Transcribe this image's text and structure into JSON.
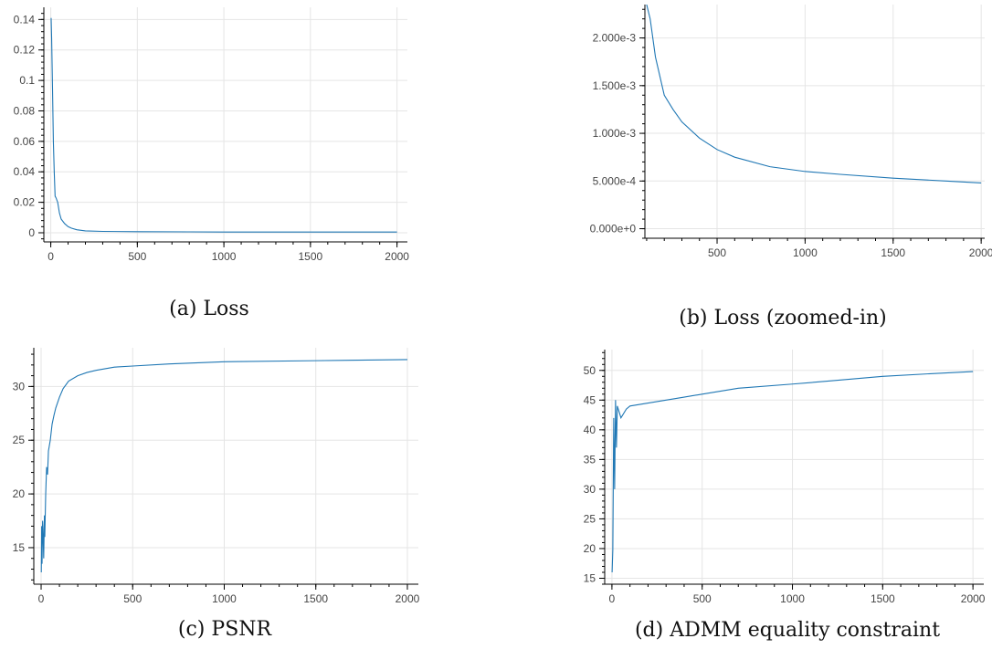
{
  "colors": {
    "line": "#1f77b4",
    "grid": "#e5e5e5",
    "axis": "#000000"
  },
  "chart_data": [
    {
      "id": "a",
      "type": "line",
      "caption": "(a) Loss",
      "xlim": [
        -40,
        2060
      ],
      "ylim": [
        -0.006,
        0.148
      ],
      "xticks": [
        0,
        500,
        1000,
        1500,
        2000
      ],
      "xtick_labels": [
        "0",
        "500",
        "1000",
        "1500",
        "2000"
      ],
      "yticks": [
        0,
        0.02,
        0.04,
        0.06,
        0.08,
        0.1,
        0.12,
        0.14
      ],
      "ytick_labels": [
        "0",
        "0.02",
        "0.04",
        "0.06",
        "0.08",
        "0.1",
        "0.12",
        "0.14"
      ],
      "grid": true,
      "series": [
        {
          "x": [
            2,
            5,
            10,
            15,
            20,
            25,
            30,
            40,
            50,
            60,
            80,
            100,
            120,
            150,
            200,
            300,
            500,
            800,
            1000,
            1500,
            2000
          ],
          "y": [
            0.141,
            0.128,
            0.095,
            0.06,
            0.04,
            0.024,
            0.023,
            0.02,
            0.013,
            0.009,
            0.006,
            0.004,
            0.003,
            0.002,
            0.0012,
            0.0009,
            0.0007,
            0.0006,
            0.0005,
            0.0005,
            0.0005
          ]
        }
      ]
    },
    {
      "id": "b",
      "type": "line",
      "caption": "(b) Loss (zoomed-in)",
      "xlim": [
        90,
        2020
      ],
      "ylim": [
        -0.0001,
        0.00235
      ],
      "xticks": [
        500,
        1000,
        1500,
        2000
      ],
      "xtick_labels": [
        "500",
        "1000",
        "1500",
        "2000"
      ],
      "yticks": [
        0,
        0.0005,
        0.001,
        0.0015,
        0.002
      ],
      "ytick_labels": [
        "0.000e+0",
        "5.000e-4",
        "1.000e-3",
        "1.500e-3",
        "2.000e-3"
      ],
      "grid": true,
      "series": [
        {
          "x": [
            100,
            120,
            150,
            200,
            250,
            300,
            400,
            500,
            600,
            800,
            1000,
            1200,
            1500,
            1800,
            2000
          ],
          "y": [
            0.00235,
            0.0022,
            0.0018,
            0.0014,
            0.00125,
            0.00112,
            0.00095,
            0.00083,
            0.00075,
            0.00065,
            0.0006,
            0.00057,
            0.00053,
            0.0005,
            0.00048
          ]
        }
      ]
    },
    {
      "id": "c",
      "type": "line",
      "caption": "(c) PSNR",
      "xlim": [
        -40,
        2060
      ],
      "ylim": [
        11.6,
        33.6
      ],
      "xticks": [
        0,
        500,
        1000,
        1500,
        2000
      ],
      "xtick_labels": [
        "0",
        "500",
        "1000",
        "1500",
        "2000"
      ],
      "yticks": [
        15,
        20,
        25,
        30
      ],
      "ytick_labels": [
        "15",
        "20",
        "25",
        "30"
      ],
      "grid": true,
      "series": [
        {
          "x": [
            1,
            3,
            5,
            8,
            10,
            14,
            18,
            20,
            25,
            30,
            35,
            40,
            50,
            60,
            70,
            80,
            100,
            120,
            150,
            200,
            250,
            300,
            400,
            500,
            700,
            1000,
            1500,
            2000
          ],
          "y": [
            12.7,
            17,
            13.5,
            17.5,
            16.8,
            14,
            18,
            16,
            20,
            22.5,
            21.8,
            24,
            25,
            26.5,
            27.3,
            28,
            29,
            29.8,
            30.5,
            31,
            31.3,
            31.5,
            31.8,
            31.9,
            32.1,
            32.3,
            32.4,
            32.5
          ]
        }
      ]
    },
    {
      "id": "d",
      "type": "line",
      "caption": "(d) ADMM equality constraint",
      "xlim": [
        -40,
        2060
      ],
      "ylim": [
        14,
        53.5
      ],
      "xticks": [
        0,
        500,
        1000,
        1500,
        2000
      ],
      "xtick_labels": [
        "0",
        "500",
        "1000",
        "1500",
        "2000"
      ],
      "yticks": [
        15,
        20,
        25,
        30,
        35,
        40,
        45,
        50
      ],
      "ytick_labels": [
        "15",
        "20",
        "25",
        "30",
        "35",
        "40",
        "45",
        "50"
      ],
      "grid": true,
      "series": [
        {
          "x": [
            1,
            5,
            10,
            15,
            20,
            25,
            30,
            40,
            50,
            80,
            100,
            200,
            300,
            400,
            500,
            700,
            1000,
            1200,
            1500,
            1800,
            2000
          ],
          "y": [
            16,
            19.8,
            42,
            30,
            45,
            37,
            44,
            43,
            42,
            43.5,
            44,
            44.5,
            45,
            45.5,
            46,
            47,
            47.7,
            48.2,
            49,
            49.5,
            49.8
          ]
        }
      ]
    }
  ]
}
